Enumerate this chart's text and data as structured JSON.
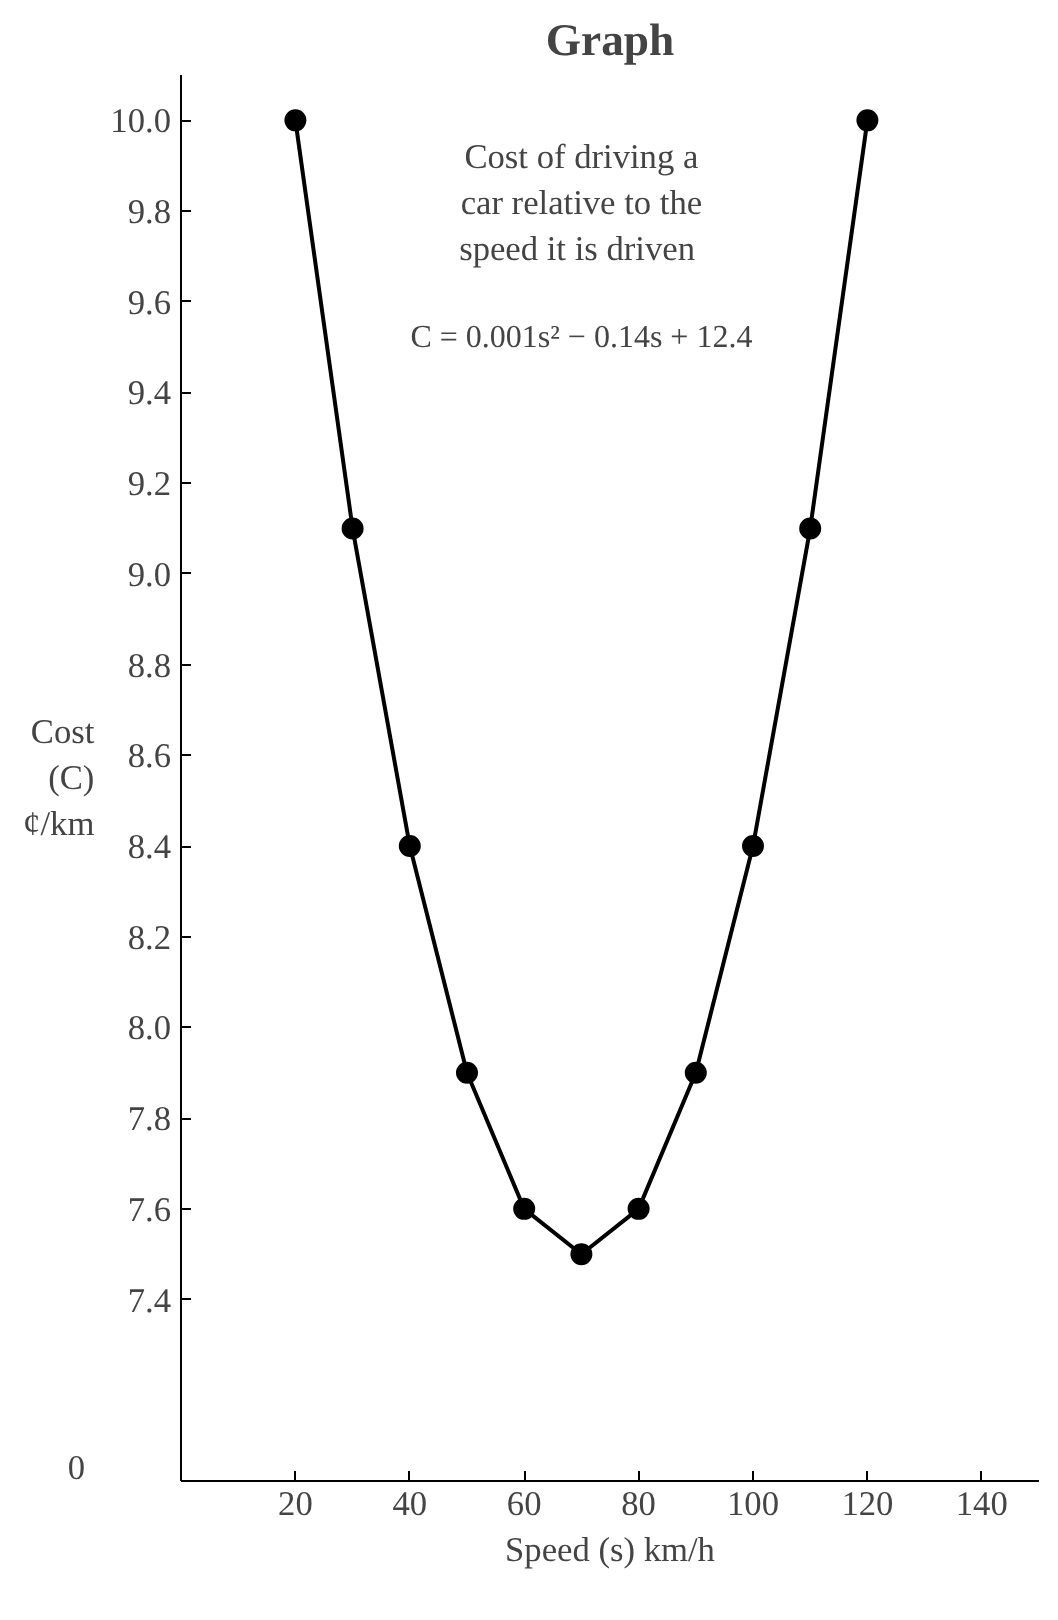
{
  "chart_data": {
    "type": "line",
    "title": "Graph",
    "xlabel": "Speed (s) km/h",
    "ylabel": "Cost (C) ¢/km",
    "x": [
      20,
      30,
      40,
      50,
      60,
      70,
      80,
      90,
      100,
      110,
      120
    ],
    "series": [
      {
        "color": "#000000",
        "values": [
          10.0,
          9.1,
          8.4,
          7.9,
          7.6,
          7.5,
          7.6,
          7.9,
          8.4,
          9.1,
          10.0
        ]
      }
    ],
    "xlim": [
      0,
      150
    ],
    "xticks": [
      20,
      40,
      60,
      80,
      100,
      120,
      140
    ],
    "ylim": [
      7.0,
      10.1
    ],
    "yticks": [
      {
        "value": 7.4,
        "label": "7.4"
      },
      {
        "value": 7.6,
        "label": "7.6"
      },
      {
        "value": 7.8,
        "label": "7.8"
      },
      {
        "value": 8.0,
        "label": "8.0"
      },
      {
        "value": 8.2,
        "label": "8.2"
      },
      {
        "value": 8.4,
        "label": "8.4"
      },
      {
        "value": 8.6,
        "label": "8.6"
      },
      {
        "value": 8.8,
        "label": "8.8"
      },
      {
        "value": 9.0,
        "label": "9.0"
      },
      {
        "value": 9.2,
        "label": "9.2"
      },
      {
        "value": 9.4,
        "label": "9.4"
      },
      {
        "value": 9.6,
        "label": "9.6"
      },
      {
        "value": 9.8,
        "label": "9.8"
      },
      {
        "value": 10.0,
        "label": "10.0"
      }
    ],
    "annotations": [
      "0",
      "Cost of driving a car relative to the speed  it is driven",
      "C = 0.001s² − 0.14s + 12.4"
    ],
    "grid": false,
    "marker": "circle",
    "line_style": "solid"
  }
}
